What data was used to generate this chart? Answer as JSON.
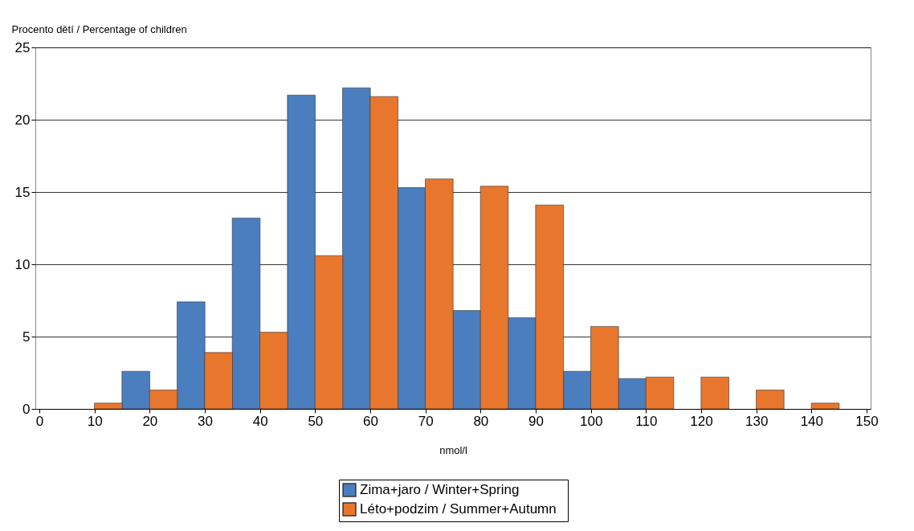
{
  "chart_data": {
    "type": "bar",
    "ylabel": "Procento dětí / Percentage of children",
    "xlabel": "nmol/l",
    "xlim": [
      0,
      150
    ],
    "xticks": [
      0,
      10,
      20,
      30,
      40,
      50,
      60,
      70,
      80,
      90,
      100,
      110,
      120,
      130,
      140,
      150
    ],
    "ylim": [
      0,
      25
    ],
    "yticks": [
      0,
      5,
      10,
      15,
      20,
      25
    ],
    "grid": "y",
    "legend": "bottom",
    "series": [
      {
        "name": "Zima+jaro  /  Winter+Spring",
        "color": "#4a7ebf",
        "x": [
          17.5,
          27.5,
          37.5,
          47.5,
          57.5,
          67.5,
          77.5,
          87.5,
          97.5,
          107.5
        ],
        "values": [
          2.6,
          7.4,
          13.2,
          21.7,
          22.2,
          15.3,
          6.8,
          6.3,
          2.6,
          2.1
        ]
      },
      {
        "name": "Léto+podzim  /  Summer+Autumn",
        "color": "#e8762c",
        "x": [
          12.5,
          22.5,
          32.5,
          42.5,
          52.5,
          62.5,
          72.5,
          82.5,
          92.5,
          102.5,
          112.5,
          122.5,
          132.5,
          142.5
        ],
        "values": [
          0.4,
          1.3,
          3.9,
          5.3,
          10.6,
          21.6,
          15.9,
          15.4,
          14.1,
          5.7,
          2.2,
          2.2,
          1.3,
          0.4
        ]
      }
    ]
  }
}
